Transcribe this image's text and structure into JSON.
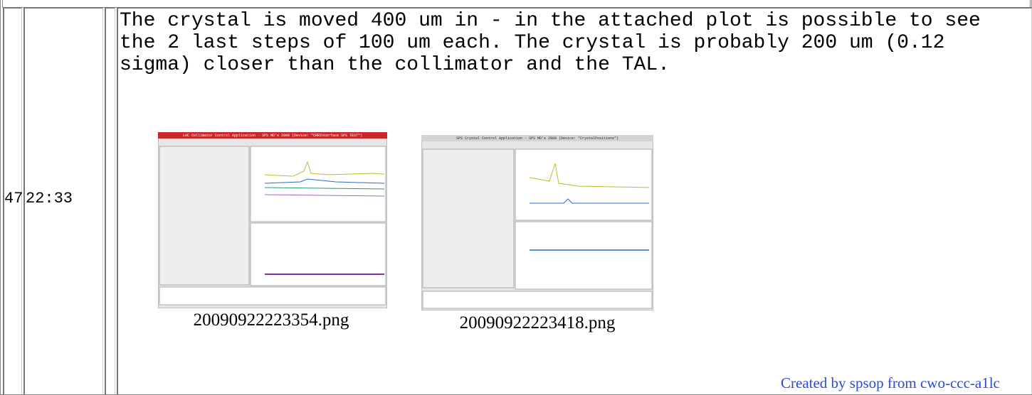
{
  "rows": [
    {
      "number": "47",
      "time": "22:33",
      "comment": "The crystal is moved 400 um in - in the attached plot is possible to see the 2 last steps of 100 um each. The crystal is probably 200 um (0.12 sigma) closer than the collimator and the TAL.",
      "attachments": [
        {
          "window_title": "LHC Collimator Control Application - SPS MD's 2009 (Device: \"CRRInterface SPS TEST\")",
          "filename": "20090922223354.png"
        },
        {
          "window_title": "SPS Crystal Control Application - SPS MD's 2009 (Device: \"CrystalPositions\")",
          "filename": "20090922223418.png"
        }
      ]
    }
  ],
  "footer": "Created by spsop from cwo-ccc-a1lc"
}
